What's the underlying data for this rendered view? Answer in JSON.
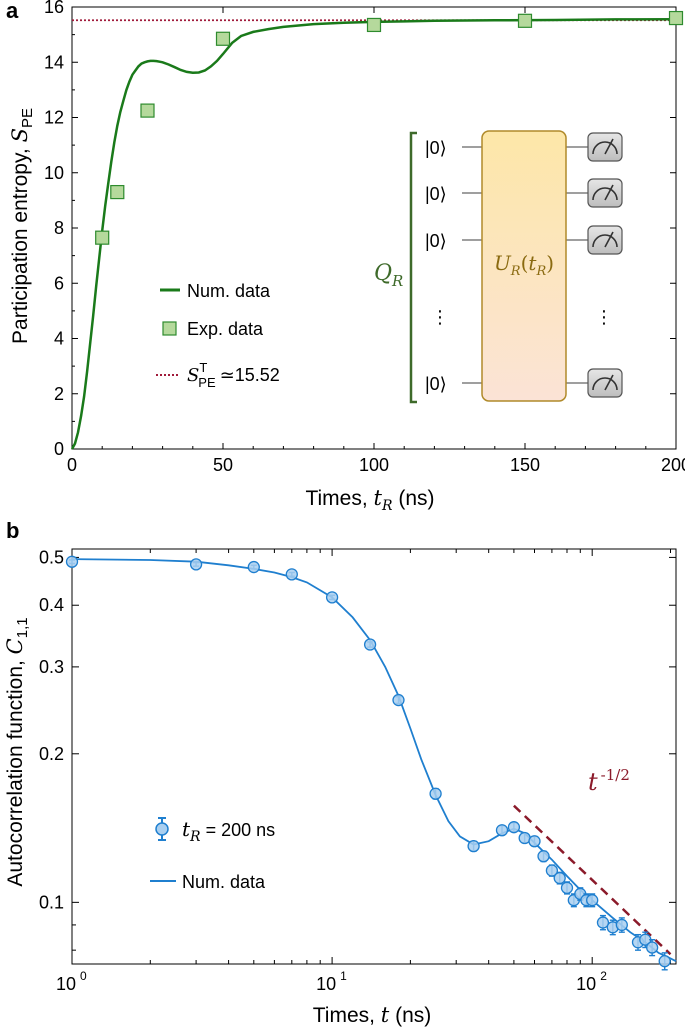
{
  "chart_data": [
    {
      "type": "line+scatter",
      "panel_label": "a",
      "xlabel_text": "Times, ",
      "xlabel_var": "t",
      "xlabel_sub": "R",
      "xlabel_unit": " (ns)",
      "ylabel_text": "Participation entropy, ",
      "ylabel_var": "S",
      "ylabel_sub": "PE",
      "xlim": [
        0,
        200
      ],
      "ylim": [
        0,
        16
      ],
      "xticks": [
        0,
        50,
        100,
        150,
        200
      ],
      "yticks": [
        0,
        2,
        4,
        6,
        8,
        10,
        12,
        14,
        16
      ],
      "series": [
        {
          "name": "Num. data",
          "style": "line",
          "color": "#1a7a1a",
          "x": [
            0,
            1,
            2,
            3,
            4,
            5,
            6,
            7,
            8,
            9,
            10,
            11,
            12,
            13,
            14,
            15,
            16,
            17,
            18,
            19,
            20,
            21,
            22,
            23,
            24,
            25,
            26,
            27,
            28,
            29,
            30,
            32,
            34,
            36,
            38,
            40,
            42,
            44,
            46,
            48,
            50,
            53,
            56,
            60,
            65,
            70,
            75,
            80,
            90,
            100,
            110,
            120,
            140,
            160,
            180,
            200
          ],
          "y": [
            0,
            0.2,
            0.6,
            1.2,
            1.9,
            2.8,
            3.8,
            4.8,
            5.9,
            6.9,
            7.9,
            8.8,
            9.6,
            10.4,
            11.1,
            11.7,
            12.2,
            12.6,
            13.0,
            13.3,
            13.55,
            13.7,
            13.85,
            13.95,
            14.0,
            14.03,
            14.05,
            14.05,
            14.04,
            14.02,
            14.0,
            13.92,
            13.82,
            13.72,
            13.65,
            13.62,
            13.63,
            13.7,
            13.85,
            14.05,
            14.3,
            14.7,
            14.95,
            15.1,
            15.2,
            15.28,
            15.33,
            15.38,
            15.43,
            15.46,
            15.48,
            15.5,
            15.52,
            15.53,
            15.55,
            15.56
          ]
        },
        {
          "name": "Exp. data",
          "style": "square-markers",
          "color": "#b5d99c",
          "edge_color": "#2e8b2e",
          "x": [
            10,
            15,
            25,
            50,
            100,
            150,
            200
          ],
          "y": [
            7.65,
            9.3,
            12.25,
            14.85,
            15.35,
            15.5,
            15.6
          ]
        },
        {
          "name": "S_PE^T ≃ 15.52",
          "style": "dotted-hline",
          "color": "#a01a3a",
          "y": 15.52
        }
      ],
      "legend": {
        "placement": "center-left",
        "num_label": "Num. data",
        "exp_label": "Exp. data",
        "thr_var": "S",
        "thr_sub": "PE",
        "thr_sup": "T",
        "thr_value": "≃15.52"
      },
      "inset": {
        "register_label": "Q",
        "register_sub": "R",
        "qubit_state": "|0⟩",
        "unitary_label": "U",
        "unitary_sub": "R",
        "unitary_arg_var": "t",
        "unitary_arg_sub": "R",
        "dots": "⋮",
        "box_color": "#fde9b8",
        "box_edge": "#b08a2a",
        "bracket_color": "#3e6a2a"
      }
    },
    {
      "type": "scatter+line (log-log)",
      "panel_label": "b",
      "xlabel_text": "Times, ",
      "xlabel_var": "t",
      "xlabel_unit": " (ns)",
      "ylabel_text": "Autocorrelation function, ",
      "ylabel_var": "C",
      "ylabel_sub": "1,1",
      "xscale": "log",
      "yscale": "log",
      "xlim": [
        1,
        210
      ],
      "ylim": [
        0.075,
        0.52
      ],
      "xticks": [
        1,
        10,
        100
      ],
      "xtick_bases": [
        "10",
        "10",
        "10"
      ],
      "xtick_exps": [
        "0",
        "1",
        "2"
      ],
      "yticks": [
        0.1,
        0.2,
        0.3,
        0.4,
        0.5
      ],
      "ytick_labels": [
        "0.1",
        "0.2",
        "0.3",
        "0.4",
        "0.5"
      ],
      "series": [
        {
          "name": "t_R = 200 ns",
          "style": "circle-markers-errorbars",
          "color": "#1f7fcf",
          "fill": "#a9cff0",
          "x": [
            1,
            3,
            5,
            7,
            10,
            14,
            18,
            25,
            35,
            45,
            50,
            55,
            60,
            65,
            70,
            75,
            80,
            85,
            90,
            95,
            100,
            110,
            120,
            130,
            150,
            160,
            170,
            190
          ],
          "y": [
            0.49,
            0.484,
            0.478,
            0.462,
            0.415,
            0.333,
            0.257,
            0.166,
            0.13,
            0.14,
            0.142,
            0.135,
            0.133,
            0.124,
            0.116,
            0.112,
            0.107,
            0.101,
            0.104,
            0.101,
            0.101,
            0.091,
            0.089,
            0.09,
            0.083,
            0.084,
            0.081,
            0.076
          ],
          "err": [
            0.004,
            0.004,
            0.004,
            0.004,
            0.004,
            0.004,
            0.004,
            0.004,
            0.003,
            0.003,
            0.003,
            0.003,
            0.003,
            0.003,
            0.003,
            0.003,
            0.003,
            0.003,
            0.003,
            0.003,
            0.003,
            0.003,
            0.003,
            0.003,
            0.003,
            0.003,
            0.003,
            0.003
          ]
        },
        {
          "name": "Num. data",
          "style": "line",
          "color": "#1f7fcf",
          "x": [
            1,
            2,
            3,
            4,
            5,
            6,
            7,
            8,
            10,
            12,
            14,
            16,
            18,
            20,
            22,
            25,
            28,
            31,
            35,
            40,
            45,
            50,
            55,
            60,
            70,
            80,
            90,
            100,
            120,
            140,
            160,
            180,
            200,
            210
          ],
          "y": [
            0.496,
            0.494,
            0.49,
            0.482,
            0.474,
            0.466,
            0.456,
            0.445,
            0.415,
            0.378,
            0.34,
            0.3,
            0.262,
            0.225,
            0.195,
            0.165,
            0.146,
            0.136,
            0.131,
            0.133,
            0.138,
            0.141,
            0.138,
            0.132,
            0.122,
            0.113,
            0.106,
            0.101,
            0.093,
            0.087,
            0.083,
            0.079,
            0.077,
            0.076
          ]
        },
        {
          "name": "t^-1/2",
          "style": "dashed-guide",
          "color": "#8b1a2a",
          "x": [
            50,
            200
          ],
          "y": [
            0.157,
            0.0785
          ]
        }
      ],
      "legend": {
        "placement": "center-left",
        "exp_var": "t",
        "exp_sub": "R",
        "exp_suffix": " = 200 ns",
        "num_label": "Num. data"
      },
      "annotation": {
        "base": "t",
        "exponent": "-1/2"
      }
    }
  ]
}
